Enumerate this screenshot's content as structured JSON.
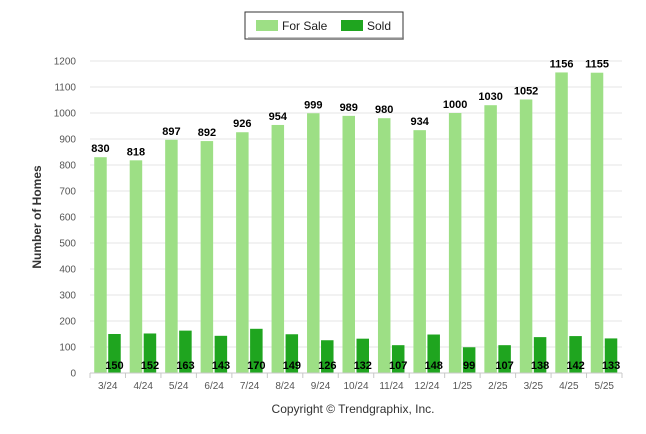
{
  "chart_data": {
    "type": "bar",
    "title": "",
    "xlabel": "",
    "ylabel": "Number of Homes",
    "ylim": [
      0,
      1200
    ],
    "yticks": [
      0,
      100,
      200,
      300,
      400,
      500,
      600,
      700,
      800,
      900,
      1000,
      1100,
      1200
    ],
    "grid": true,
    "legend_position": "top-center",
    "categories": [
      "3/24",
      "4/24",
      "5/24",
      "6/24",
      "7/24",
      "8/24",
      "9/24",
      "10/24",
      "11/24",
      "12/24",
      "1/25",
      "2/25",
      "3/25",
      "4/25",
      "5/25"
    ],
    "series": [
      {
        "name": "For Sale",
        "color": "#9ddf85",
        "values": [
          830,
          818,
          897,
          892,
          926,
          954,
          999,
          989,
          980,
          934,
          1000,
          1030,
          1052,
          1156,
          1155
        ]
      },
      {
        "name": "Sold",
        "color": "#1fa51f",
        "values": [
          150,
          152,
          163,
          143,
          170,
          149,
          126,
          132,
          107,
          148,
          99,
          107,
          138,
          142,
          133
        ]
      }
    ]
  },
  "footer": {
    "copyright": "Copyright © Trendgraphix, Inc."
  }
}
